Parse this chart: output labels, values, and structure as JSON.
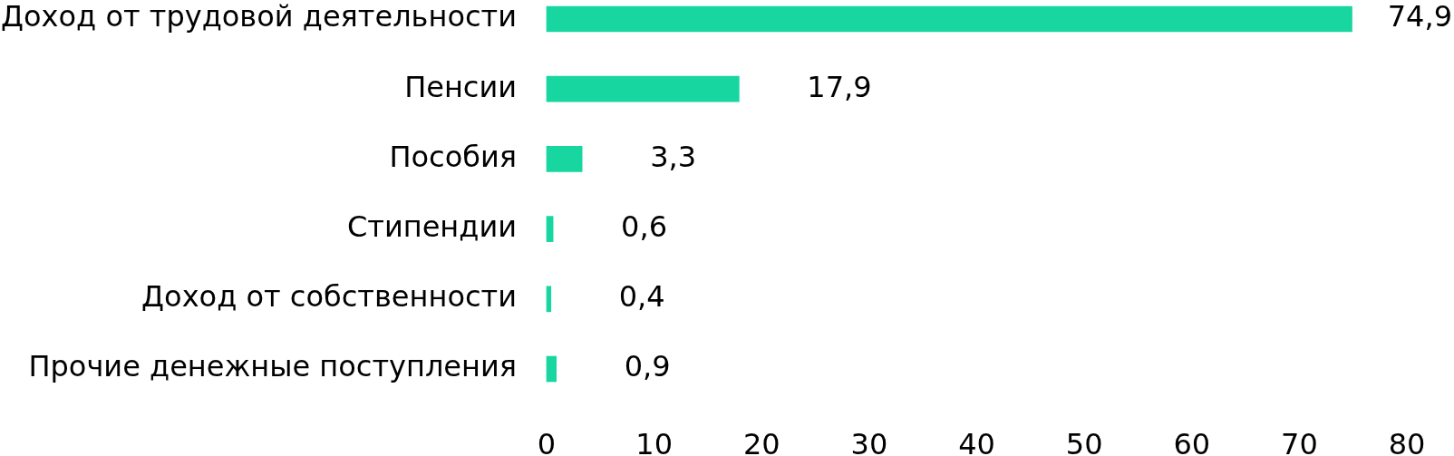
{
  "chart_data": {
    "type": "bar",
    "orientation": "horizontal",
    "categories": [
      "Доход от трудовой деятельности",
      "Пенсии",
      "Пособия",
      "Стипендии",
      "Доход от собственности",
      "Прочие денежные поступления"
    ],
    "values": [
      74.9,
      17.9,
      3.3,
      0.6,
      0.4,
      0.9
    ],
    "value_labels": [
      "74,9",
      "17,9",
      "3,3",
      "0,6",
      "0,4",
      "0,9"
    ],
    "color": "#17d6a0",
    "xlim": [
      0,
      80
    ],
    "xticks": [
      0,
      10,
      20,
      30,
      40,
      50,
      60,
      70,
      80
    ],
    "grid": false,
    "legend": false
  }
}
